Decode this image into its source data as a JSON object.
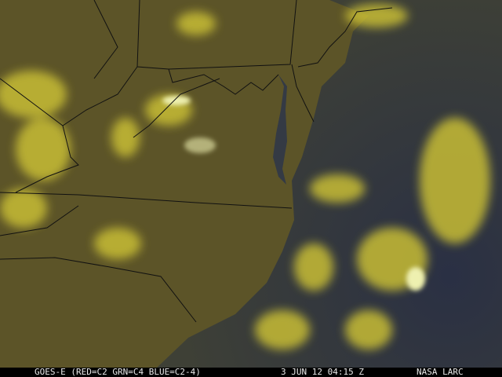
{
  "image": {
    "type": "satellite-composite",
    "region": "US Mid-Atlantic / Southeast coast",
    "colors": {
      "land": "#5a5226",
      "ocean": "#2e3446",
      "cloud": "#d6cc3a",
      "bright_cloud": "#eef0a8",
      "borders": "#111111"
    }
  },
  "caption": {
    "product": "GOES-E (RED=C2 GRN=C4 BLUE=C2-4)",
    "datetime": "3 JUN 12 04:15 Z",
    "source": "NASA LARC"
  }
}
